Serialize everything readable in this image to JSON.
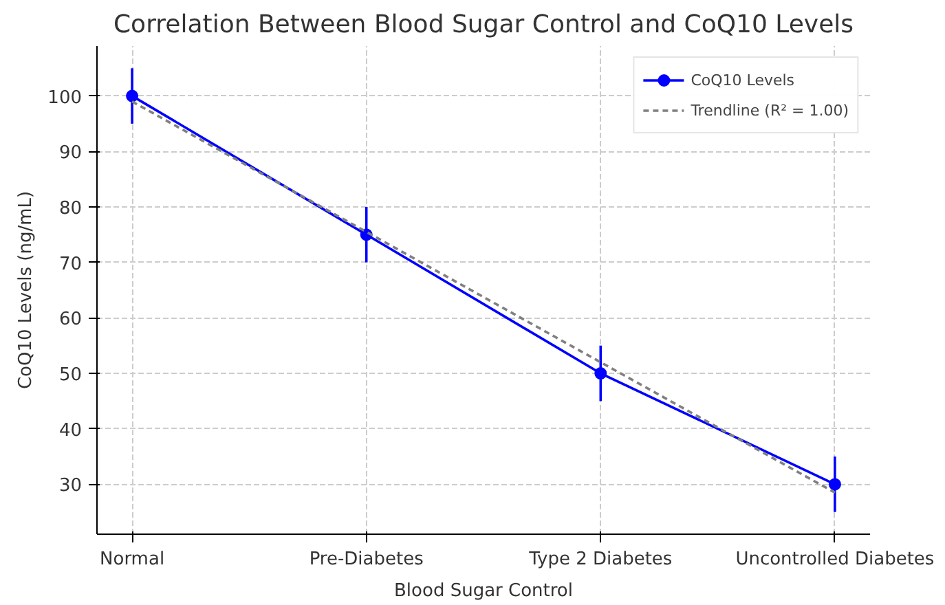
{
  "chart_data": {
    "type": "line",
    "title": "Correlation Between Blood Sugar Control and CoQ10 Levels",
    "xlabel": "Blood Sugar Control",
    "ylabel": "CoQ10 Levels (ng/mL)",
    "categories": [
      "Normal",
      "Pre-Diabetes",
      "Type 2 Diabetes",
      "Uncontrolled Diabetes"
    ],
    "series": [
      {
        "name": "CoQ10 Levels",
        "color": "#0000ff",
        "values": [
          100,
          75,
          50,
          30
        ],
        "errors": [
          5,
          5,
          5,
          5
        ],
        "marker": "circle",
        "line_style": "solid"
      },
      {
        "name": "Trendline (R² = 1.00)",
        "color": "#808080",
        "values": [
          99,
          75.5,
          52,
          28.5
        ],
        "marker": "none",
        "line_style": "dashed"
      }
    ],
    "ylim": [
      21,
      109
    ],
    "yticks": [
      30,
      40,
      50,
      60,
      70,
      80,
      90,
      100
    ],
    "grid": true,
    "legend": "top right"
  }
}
